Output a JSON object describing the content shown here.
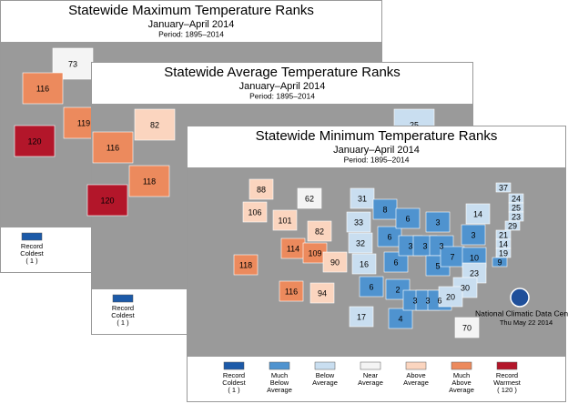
{
  "palette": [
    "#1c5aa8",
    "#4f93cf",
    "#c9def0",
    "#f4f4f4",
    "#fbd5bf",
    "#ec8a5d",
    "#b3162a"
  ],
  "cards": [
    {
      "title": "Statewide Maximum Temperature Ranks",
      "subtitle": "January–April 2014",
      "period": "Period: 1895–2014",
      "states": [
        {
          "rank": 73
        },
        {
          "rank": 116
        },
        {
          "rank": 120
        },
        {
          "rank": 119
        }
      ],
      "legend": [
        [
          "Record",
          "Coldest",
          "( 1 )"
        ]
      ]
    },
    {
      "title": "Statewide Average Temperature Ranks",
      "subtitle": "January–April 2014",
      "period": "Period: 1895–2014",
      "states": [
        {
          "rank": 82
        },
        {
          "rank": 116
        },
        {
          "rank": 120
        },
        {
          "rank": 118
        },
        {
          "rank": 25
        }
      ],
      "legend": [
        [
          "Record",
          "Coldest",
          "( 1 )"
        ]
      ]
    },
    {
      "title": "Statewide Minimum Temperature Ranks",
      "subtitle": "January–April 2014",
      "period": "Period: 1895–2014",
      "states": [
        {
          "rank": 88
        },
        {
          "rank": 106
        },
        {
          "rank": 101
        },
        {
          "rank": 62
        },
        {
          "rank": 31
        },
        {
          "rank": 33
        },
        {
          "rank": 82
        },
        {
          "rank": 118
        },
        {
          "rank": 114
        },
        {
          "rank": 109
        },
        {
          "rank": 90
        },
        {
          "rank": 32
        },
        {
          "rank": 16
        },
        {
          "rank": 116
        },
        {
          "rank": 94
        },
        {
          "rank": 17
        },
        {
          "rank": 6
        },
        {
          "rank": 8
        },
        {
          "rank": 6
        },
        {
          "rank": 6
        },
        {
          "rank": 2
        },
        {
          "rank": 4
        },
        {
          "rank": 3
        },
        {
          "rank": 3
        },
        {
          "rank": 6
        },
        {
          "rank": 3
        },
        {
          "rank": 3
        },
        {
          "rank": 3
        },
        {
          "rank": 3
        },
        {
          "rank": 5
        },
        {
          "rank": 7
        },
        {
          "rank": 10
        },
        {
          "rank": 3
        },
        {
          "rank": 14
        },
        {
          "rank": 6
        },
        {
          "rank": 23
        },
        {
          "rank": 30
        },
        {
          "rank": 20
        },
        {
          "rank": 70
        },
        {
          "rank": 37
        },
        {
          "rank": 24
        },
        {
          "rank": 25
        },
        {
          "rank": 23
        },
        {
          "rank": 29
        },
        {
          "rank": 21
        },
        {
          "rank": 14
        },
        {
          "rank": 19
        },
        {
          "rank": 9
        }
      ],
      "legend": [
        [
          "Record",
          "Coldest",
          "( 1 )"
        ],
        [
          "Much",
          "Below",
          "Average"
        ],
        [
          "Below",
          "Average"
        ],
        [
          "Near",
          "Average"
        ],
        [
          "Above",
          "Average"
        ],
        [
          "Much",
          "Above",
          "Average"
        ],
        [
          "Record",
          "Warmest",
          "( 120 )"
        ]
      ],
      "credit": [
        "National Climatic Data Center",
        "Thu May 22 2014"
      ]
    }
  ]
}
